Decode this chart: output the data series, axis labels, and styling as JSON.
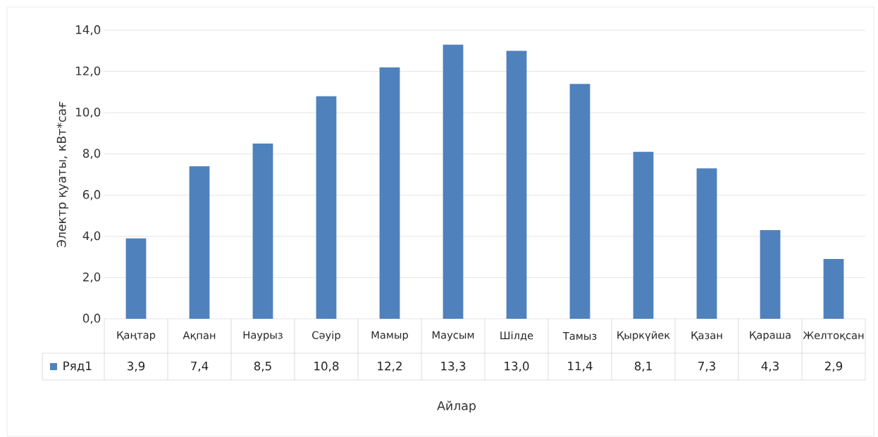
{
  "chart_data": {
    "type": "bar",
    "xlabel": "Айлар",
    "ylabel": "Электр қуаты, кВт*сағ",
    "categories": [
      "Қаңтар",
      "Ақпан",
      "Наурыз",
      "Сәуір",
      "Мамыр",
      "Маусым",
      "Шілде",
      "Тамыз",
      "Қыркүйек",
      "Қазан",
      "Қараша",
      "Желтоқсан"
    ],
    "series": [
      {
        "name": "Ряд1",
        "color": "#4f81bd",
        "values": [
          3.9,
          7.4,
          8.5,
          10.8,
          12.2,
          13.3,
          13.0,
          11.4,
          8.1,
          7.3,
          4.3,
          2.9
        ],
        "value_labels": [
          "3,9",
          "7,4",
          "8,5",
          "10,8",
          "12,2",
          "13,3",
          "13,0",
          "11,4",
          "8,1",
          "7,3",
          "4,3",
          "2,9"
        ]
      }
    ],
    "ylim": [
      0,
      14
    ],
    "yticks": [
      {
        "value": 0,
        "label": "0,0"
      },
      {
        "value": 2,
        "label": "2,0"
      },
      {
        "value": 4,
        "label": "4,0"
      },
      {
        "value": 6,
        "label": "6,0"
      },
      {
        "value": 8,
        "label": "8,0"
      },
      {
        "value": 10,
        "label": "10,0"
      },
      {
        "value": 12,
        "label": "12,0"
      },
      {
        "value": 14,
        "label": "14,0"
      }
    ],
    "grid": "y"
  }
}
